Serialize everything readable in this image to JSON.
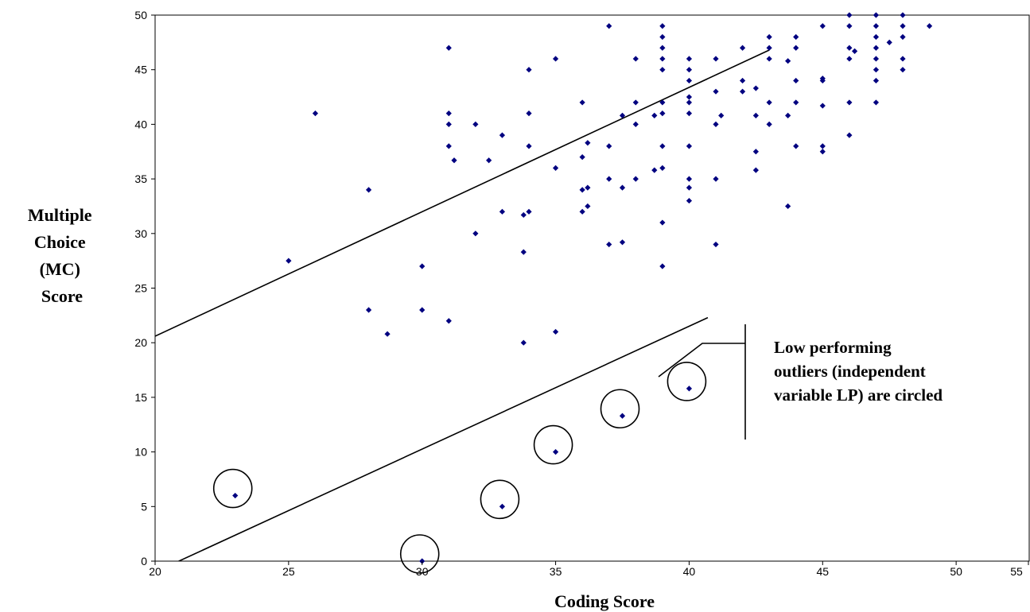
{
  "chart_data": {
    "type": "scatter",
    "title": "",
    "xlabel": "Coding Score",
    "ylabel_lines": [
      "Multiple",
      "Choice",
      "(MC)",
      "Score"
    ],
    "xlim": [
      20,
      55
    ],
    "ylim": [
      0,
      50
    ],
    "xticks": [
      20,
      25,
      30,
      35,
      40,
      45,
      50,
      55
    ],
    "yticks": [
      0,
      5,
      10,
      15,
      20,
      25,
      30,
      35,
      40,
      45,
      50
    ],
    "grid": false,
    "marker_color": "#000080",
    "points": [
      [
        25,
        27.5
      ],
      [
        26,
        41
      ],
      [
        28,
        34
      ],
      [
        28,
        23
      ],
      [
        28.7,
        20.8
      ],
      [
        30,
        27
      ],
      [
        30,
        23
      ],
      [
        31,
        47
      ],
      [
        31,
        41
      ],
      [
        31,
        40
      ],
      [
        31,
        38
      ],
      [
        31,
        22
      ],
      [
        31.2,
        36.7
      ],
      [
        32,
        40
      ],
      [
        32,
        30
      ],
      [
        32.5,
        36.7
      ],
      [
        33,
        39
      ],
      [
        33,
        32
      ],
      [
        33.8,
        31.7
      ],
      [
        33.8,
        28.3
      ],
      [
        33.8,
        20
      ],
      [
        34,
        45
      ],
      [
        34,
        41
      ],
      [
        34,
        38
      ],
      [
        34,
        32
      ],
      [
        35,
        46
      ],
      [
        35,
        36
      ],
      [
        35,
        21
      ],
      [
        36,
        42
      ],
      [
        36,
        37
      ],
      [
        36,
        34
      ],
      [
        36,
        32
      ],
      [
        36.2,
        34.2
      ],
      [
        36.2,
        38.3
      ],
      [
        36.2,
        32.5
      ],
      [
        37,
        49
      ],
      [
        37,
        38
      ],
      [
        37,
        35
      ],
      [
        37,
        29
      ],
      [
        37.5,
        40.8
      ],
      [
        37.5,
        34.2
      ],
      [
        37.5,
        29.2
      ],
      [
        38,
        46
      ],
      [
        38,
        42
      ],
      [
        38,
        40
      ],
      [
        38,
        35
      ],
      [
        38.7,
        40.8
      ],
      [
        38.7,
        35.8
      ],
      [
        39,
        49
      ],
      [
        39,
        48
      ],
      [
        39,
        47
      ],
      [
        39,
        46
      ],
      [
        39,
        45
      ],
      [
        39,
        42
      ],
      [
        39,
        41
      ],
      [
        39,
        38
      ],
      [
        39,
        36
      ],
      [
        39,
        31
      ],
      [
        39,
        27
      ],
      [
        40,
        46
      ],
      [
        40,
        45
      ],
      [
        40,
        44
      ],
      [
        40,
        42.5
      ],
      [
        40,
        42
      ],
      [
        40,
        41
      ],
      [
        40,
        38
      ],
      [
        40,
        35
      ],
      [
        40,
        34.2
      ],
      [
        40,
        33
      ],
      [
        41,
        46
      ],
      [
        41,
        43
      ],
      [
        41,
        40
      ],
      [
        41,
        35
      ],
      [
        41,
        29
      ],
      [
        41.2,
        40.8
      ],
      [
        42,
        47
      ],
      [
        42,
        44
      ],
      [
        42,
        43
      ],
      [
        42.5,
        43.3
      ],
      [
        42.5,
        40.8
      ],
      [
        42.5,
        37.5
      ],
      [
        42.5,
        35.8
      ],
      [
        43,
        48
      ],
      [
        43,
        47
      ],
      [
        43,
        46
      ],
      [
        43,
        42
      ],
      [
        43,
        40
      ],
      [
        43.7,
        45.8
      ],
      [
        43.7,
        40.8
      ],
      [
        43.7,
        32.5
      ],
      [
        44,
        48
      ],
      [
        44,
        47
      ],
      [
        44,
        44
      ],
      [
        44,
        42
      ],
      [
        44,
        38
      ],
      [
        45,
        49
      ],
      [
        45,
        44.2
      ],
      [
        45,
        44
      ],
      [
        45,
        41.7
      ],
      [
        45,
        38
      ],
      [
        45,
        37.5
      ],
      [
        46,
        50
      ],
      [
        46,
        49
      ],
      [
        46,
        47
      ],
      [
        46,
        46
      ],
      [
        46,
        42
      ],
      [
        46,
        39
      ],
      [
        46.2,
        46.7
      ],
      [
        47,
        50
      ],
      [
        47,
        49
      ],
      [
        47,
        48
      ],
      [
        47,
        47
      ],
      [
        47,
        46
      ],
      [
        47,
        45
      ],
      [
        47,
        44
      ],
      [
        47,
        42
      ],
      [
        47.5,
        47.5
      ],
      [
        48,
        50
      ],
      [
        48,
        49
      ],
      [
        48,
        48
      ],
      [
        48,
        46
      ],
      [
        48,
        45
      ],
      [
        49,
        49
      ],
      [
        23,
        6
      ],
      [
        30,
        0
      ],
      [
        33,
        5
      ],
      [
        35,
        10
      ],
      [
        37.5,
        13.3
      ],
      [
        40,
        15.8
      ]
    ],
    "circled_outliers": [
      [
        23,
        6
      ],
      [
        30,
        0
      ],
      [
        33,
        5
      ],
      [
        35,
        10
      ],
      [
        37.5,
        13.3
      ],
      [
        40,
        15.8
      ]
    ],
    "lines": [
      {
        "from": [
          20,
          20.6
        ],
        "to": [
          43,
          46.8
        ]
      },
      {
        "from": [
          20,
          -1
        ],
        "to": [
          40.7,
          22.3
        ]
      }
    ],
    "annotation": {
      "lines": [
        "Low performing",
        "outliers (independent",
        "variable LP) are circled"
      ]
    }
  }
}
